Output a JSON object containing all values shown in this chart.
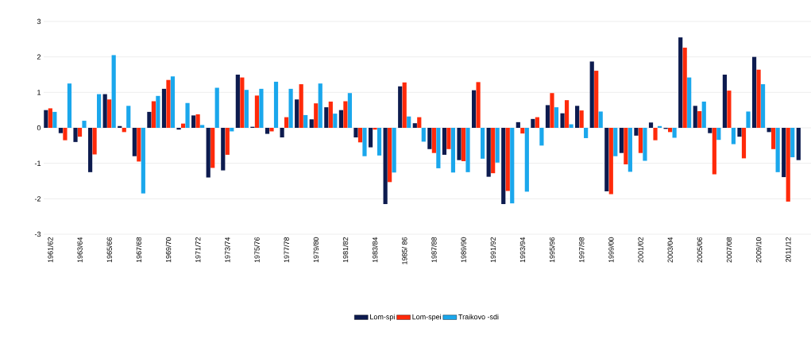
{
  "chart_data": {
    "type": "bar",
    "categories": [
      "1961/62",
      null,
      "1963/64",
      null,
      "1965/66",
      null,
      "1967/68",
      null,
      "1969/70",
      null,
      "1971/72",
      null,
      "1973/74",
      null,
      "1975/76",
      null,
      "1977/78",
      null,
      "1979/80",
      null,
      "1981/82",
      null,
      "1983/84",
      null,
      "1985/ 86",
      null,
      "1987/88",
      null,
      "1989/90",
      null,
      "1991/92",
      null,
      "1993/94",
      null,
      "1995/96",
      null,
      "1997/98",
      null,
      "1999/00",
      null,
      "2001/02",
      null,
      "2003/04",
      null,
      "2005/06",
      null,
      "2007/08",
      null,
      "2009/10",
      null,
      "2011/12",
      null
    ],
    "series": [
      {
        "name": "Lom-spi",
        "color": "#0d1b4f",
        "values": [
          0.5,
          -0.15,
          -0.4,
          -1.25,
          0.95,
          0.05,
          -0.8,
          0.45,
          1.1,
          -0.05,
          0.35,
          -1.4,
          -1.2,
          1.5,
          0.03,
          -0.17,
          -0.27,
          0.8,
          0.24,
          0.58,
          0.5,
          -0.27,
          -0.55,
          -2.15,
          1.17,
          0.13,
          -0.6,
          -0.76,
          -0.91,
          1.06,
          -1.38,
          -2.15,
          0.16,
          0.25,
          0.64,
          0.41,
          0.62,
          1.87,
          -1.79,
          -0.71,
          -0.22,
          0.15,
          -0.03,
          2.55,
          0.62,
          -0.15,
          1.5,
          -0.25,
          2.0,
          -0.12,
          -1.39,
          -0.91
        ]
      },
      {
        "name": "Lom-spei",
        "color": "#ff2a0a",
        "values": [
          0.55,
          -0.35,
          -0.25,
          -0.75,
          0.8,
          -0.12,
          -0.95,
          0.75,
          1.35,
          0.12,
          0.38,
          -1.13,
          -0.76,
          1.42,
          0.91,
          -0.1,
          0.3,
          1.23,
          0.69,
          0.74,
          0.75,
          -0.41,
          -0.05,
          -1.53,
          1.28,
          0.3,
          -0.71,
          -0.6,
          -0.94,
          1.29,
          -1.28,
          -1.78,
          -0.16,
          0.3,
          0.98,
          0.78,
          0.49,
          1.61,
          -1.87,
          -1.03,
          -0.71,
          -0.35,
          -0.12,
          2.26,
          0.47,
          -1.31,
          1.05,
          -0.86,
          1.64,
          -0.6,
          -2.08,
          null
        ]
      },
      {
        "name": "Traikovo -sdi",
        "color": "#1aa7ec",
        "values": [
          0.45,
          1.25,
          0.2,
          0.95,
          2.05,
          0.62,
          -1.85,
          0.9,
          1.45,
          0.7,
          0.08,
          1.13,
          -0.1,
          1.07,
          1.1,
          1.3,
          1.1,
          0.36,
          1.25,
          0.4,
          0.98,
          -0.8,
          -0.78,
          -1.26,
          0.32,
          -0.39,
          -1.14,
          -1.26,
          -1.25,
          -0.87,
          -0.98,
          -2.13,
          -1.8,
          -0.5,
          0.58,
          0.1,
          -0.29,
          0.46,
          -0.8,
          -1.24,
          -0.93,
          0.05,
          -0.28,
          1.42,
          0.74,
          -0.34,
          -0.46,
          0.46,
          1.23,
          -1.25,
          -0.83,
          null
        ]
      }
    ],
    "ylim": [
      -3,
      3
    ],
    "yticks": [
      -3,
      -2,
      -1,
      0,
      1,
      2,
      3
    ],
    "grid": "y",
    "legend": "bottom"
  }
}
